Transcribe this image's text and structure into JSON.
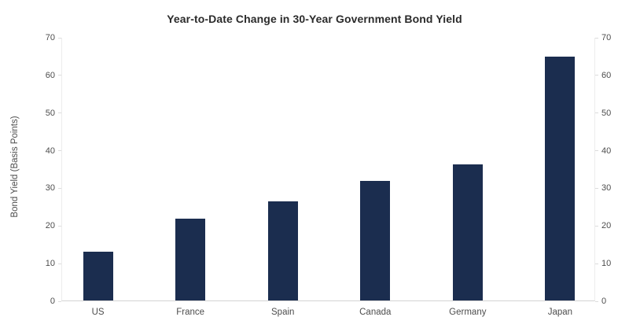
{
  "title": "Year-to-Date Change in 30-Year Government Bond Yield",
  "chart_data": {
    "type": "bar",
    "title": "Year-to-Date Change in 30-Year Government Bond Yield",
    "categories": [
      "US",
      "France",
      "Spain",
      "Canada",
      "Germany",
      "Japan"
    ],
    "values": [
      13,
      21.8,
      26.3,
      31.8,
      36.2,
      64.7
    ],
    "xlabel": "",
    "ylabel": "Bond Yield (Basis Points)",
    "ylim": [
      0,
      70
    ],
    "yticks": [
      0,
      10,
      20,
      30,
      40,
      50,
      60,
      70
    ],
    "yticks_mirrored_right": true,
    "grid": false,
    "legend": "none",
    "bar_color": "#1b2d4f",
    "axis_line_color": "#ececec",
    "baseline_color": "#d4d4d4",
    "tick_label_color": "#4d4d4d",
    "title_color": "#2b2b2b",
    "background_color": "#ffffff"
  }
}
